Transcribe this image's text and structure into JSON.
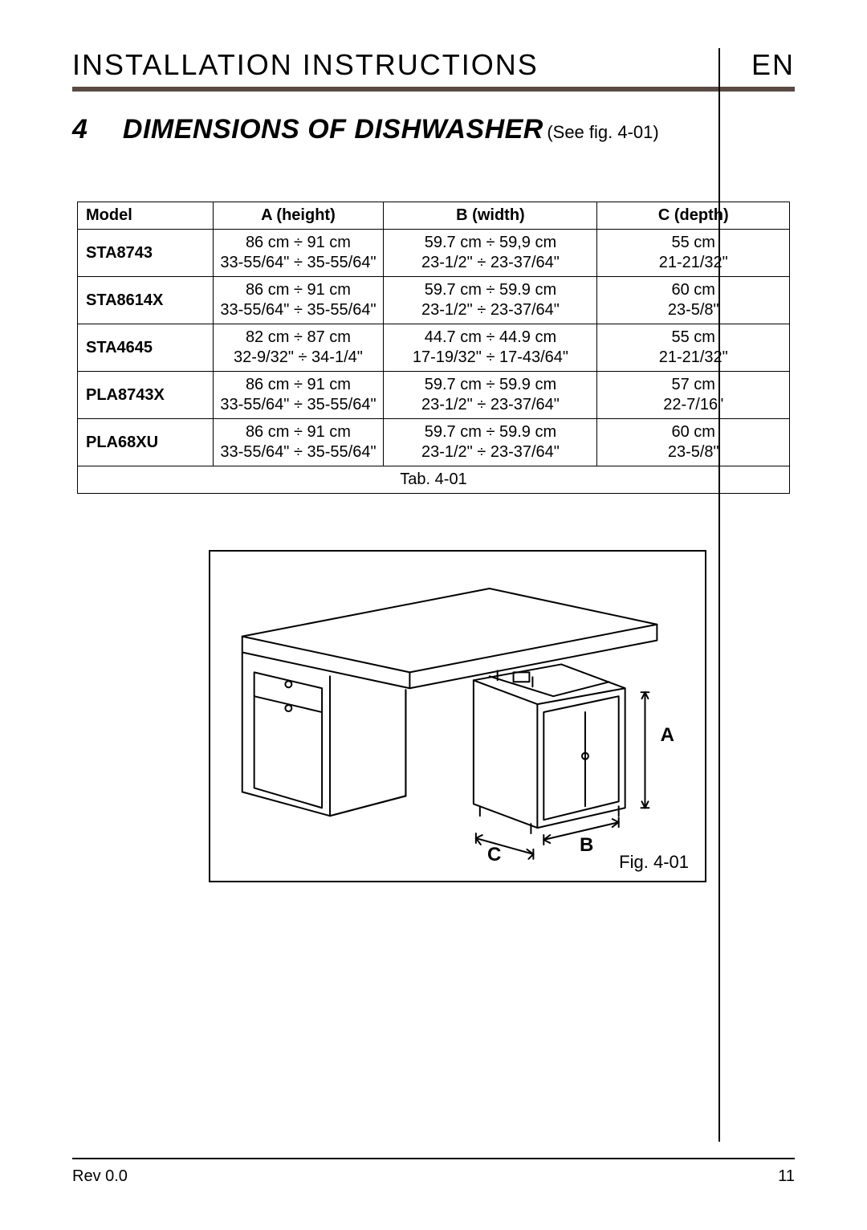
{
  "header": {
    "title": "INSTALLATION INSTRUCTIONS",
    "lang": "EN",
    "accent_color": "#5a4a44"
  },
  "section": {
    "number": "4",
    "title": "DIMENSIONS OF DISHWASHER",
    "subtitle": "(See fig. 4-01)"
  },
  "dim_table": {
    "columns": [
      "Model",
      "A (height)",
      "B (width)",
      "C (depth)"
    ],
    "rows": [
      {
        "model": "STA8743",
        "height": "86 cm ÷ 91 cm\n33-55/64\" ÷ 35-55/64\"",
        "width": "59.7 cm ÷ 59,9 cm\n23-1/2\" ÷ 23-37/64\"",
        "depth": "55 cm\n21-21/32\""
      },
      {
        "model": "STA8614X",
        "height": "86 cm ÷ 91 cm\n33-55/64\" ÷ 35-55/64\"",
        "width": "59.7 cm ÷ 59.9 cm\n23-1/2\" ÷ 23-37/64\"",
        "depth": "60 cm\n23-5/8\""
      },
      {
        "model": "STA4645",
        "height": "82 cm ÷ 87 cm\n32-9/32\" ÷ 34-1/4\"",
        "width": "44.7 cm ÷ 44.9 cm\n17-19/32\" ÷ 17-43/64\"",
        "depth": "55 cm\n21-21/32\""
      },
      {
        "model": "PLA8743X",
        "height": "86 cm ÷ 91 cm\n33-55/64\" ÷ 35-55/64\"",
        "width": "59.7 cm ÷ 59.9 cm\n23-1/2\" ÷ 23-37/64\"",
        "depth": "57 cm\n22-7/16\""
      },
      {
        "model": "PLA68XU",
        "height": "86 cm ÷ 91 cm\n33-55/64\" ÷ 35-55/64\"",
        "width": "59.7 cm ÷ 59.9 cm\n23-1/2\" ÷ 23-37/64\"",
        "depth": "60 cm\n23-5/8\""
      }
    ],
    "caption": "Tab. 4-01",
    "border_color": "#000000",
    "font_size": 20
  },
  "figure": {
    "labels": {
      "A": "A",
      "B": "B",
      "C": "C"
    },
    "caption": "Fig. 4-01",
    "stroke": "#000000",
    "stroke_width": 2
  },
  "footer": {
    "rev": "Rev 0.0",
    "page": "11"
  }
}
